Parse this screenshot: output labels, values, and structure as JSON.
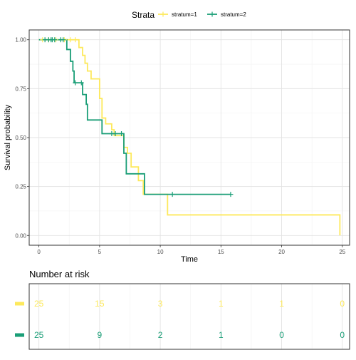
{
  "chart_data": [
    {
      "type": "line",
      "subtype": "kaplan-meier",
      "title": "",
      "xlabel": "Time",
      "ylabel": "Survival probability",
      "xlim": [
        -0.8,
        25.6
      ],
      "ylim": [
        -0.05,
        1.05
      ],
      "x_ticks": [
        0,
        5,
        10,
        15,
        20,
        25
      ],
      "y_ticks": [
        0,
        0.25,
        0.5,
        0.75,
        1
      ],
      "y_tick_labels": [
        "0.00",
        "0.25",
        "0.50",
        "0.75",
        "1.00"
      ],
      "grid": true,
      "legend": {
        "title": "Strata",
        "position": "top"
      },
      "series": [
        {
          "name": "stratum=1",
          "color": "#fde95c",
          "steps": [
            [
              0,
              1.0
            ],
            [
              3.3,
              0.96
            ],
            [
              3.6,
              0.92
            ],
            [
              3.8,
              0.88
            ],
            [
              4.0,
              0.84
            ],
            [
              4.3,
              0.8
            ],
            [
              5.0,
              0.7
            ],
            [
              5.2,
              0.6
            ],
            [
              5.5,
              0.57
            ],
            [
              6.0,
              0.54
            ],
            [
              6.2,
              0.51
            ],
            [
              7.0,
              0.45
            ],
            [
              7.3,
              0.42
            ],
            [
              7.6,
              0.35
            ],
            [
              8.2,
              0.28
            ],
            [
              8.6,
              0.21
            ],
            [
              10.6,
              0.105
            ],
            [
              24.8,
              0.0
            ]
          ],
          "end_time": 24.8,
          "censor_times": [
            0.3,
            0.8,
            1.4,
            2.1,
            2.6,
            3.0
          ]
        },
        {
          "name": "stratum=2",
          "color": "#1a9e77",
          "steps": [
            [
              0,
              1.0
            ],
            [
              2.3,
              0.95
            ],
            [
              2.6,
              0.89
            ],
            [
              2.8,
              0.84
            ],
            [
              2.9,
              0.78
            ],
            [
              3.6,
              0.72
            ],
            [
              3.9,
              0.67
            ],
            [
              4.0,
              0.59
            ],
            [
              5.2,
              0.52
            ],
            [
              7.0,
              0.42
            ],
            [
              7.2,
              0.315
            ],
            [
              8.7,
              0.21
            ]
          ],
          "end_time": 15.8,
          "censor_times": [
            0.5,
            0.8,
            1.0,
            1.1,
            1.3,
            1.8,
            2.0,
            3.0,
            3.5,
            6.0,
            6.3,
            6.8,
            11.0,
            15.8
          ]
        }
      ]
    },
    {
      "type": "table",
      "title": "Number at risk",
      "times": [
        0,
        5,
        10,
        15,
        20,
        25
      ],
      "rows": [
        {
          "stratum": "stratum=1",
          "color": "#fde95c",
          "values": [
            "25",
            "15",
            "3",
            "1",
            "1",
            "0"
          ]
        },
        {
          "stratum": "stratum=2",
          "color": "#1a9e77",
          "values": [
            "25",
            "9",
            "2",
            "1",
            "0",
            "0"
          ]
        }
      ]
    }
  ]
}
